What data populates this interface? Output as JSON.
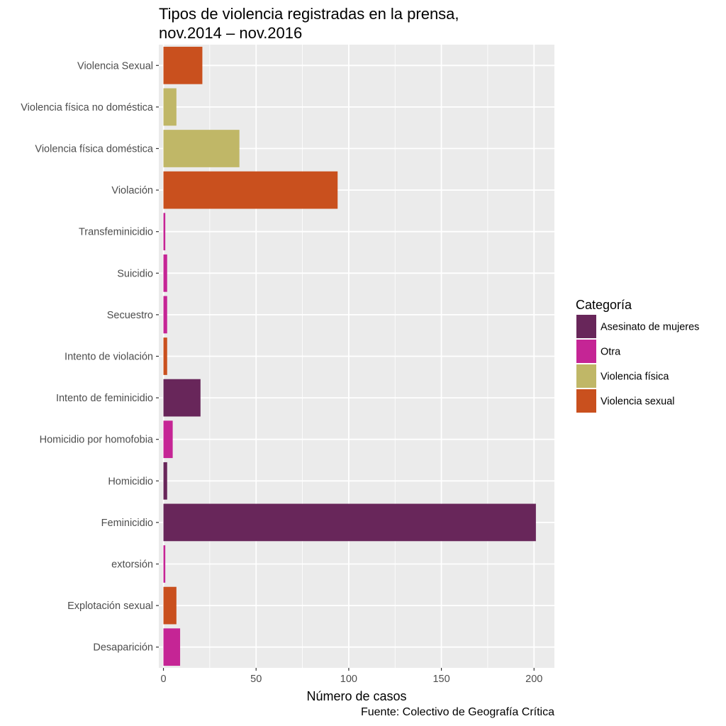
{
  "chart_data": {
    "type": "bar",
    "orientation": "horizontal",
    "title_lines": [
      "Tipos de violencia registradas en la prensa,",
      "nov.2014 – nov.2016"
    ],
    "xlabel": "Número de casos",
    "ylabel": "",
    "caption": "Fuente: Colectivo de Geografía Crítica",
    "xlim": [
      -2.5,
      211
    ],
    "xticks": [
      0,
      50,
      100,
      150,
      200
    ],
    "xtick_labels": [
      "0",
      "50",
      "100",
      "150",
      "200"
    ],
    "grid": true,
    "legend_position": "right",
    "legend_title": "Categoría",
    "legend": [
      {
        "name": "Asesinato de mujeres",
        "color": "#68265a"
      },
      {
        "name": "Otra",
        "color": "#c52595"
      },
      {
        "name": "Violencia física",
        "color": "#c0b767"
      },
      {
        "name": "Violencia sexual",
        "color": "#c9501e"
      }
    ],
    "categories": [
      "Violencia Sexual",
      "Violencia física no doméstica",
      "Violencia física doméstica",
      "Violación",
      "Transfeminicidio",
      "Suicidio",
      "Secuestro",
      "Intento de violación",
      "Intento de feminicidio",
      "Homicidio por homofobia",
      "Homicidio",
      "Feminicidio",
      "extorsión",
      "Explotación sexual",
      "Desaparición"
    ],
    "values": [
      21,
      7,
      41,
      94,
      1,
      2,
      2,
      2,
      20,
      5,
      2,
      201,
      1,
      7,
      9
    ],
    "category_group": [
      "Violencia sexual",
      "Violencia física",
      "Violencia física",
      "Violencia sexual",
      "Otra",
      "Otra",
      "Otra",
      "Violencia sexual",
      "Asesinato de mujeres",
      "Otra",
      "Asesinato de mujeres",
      "Asesinato de mujeres",
      "Otra",
      "Violencia sexual",
      "Otra"
    ]
  }
}
